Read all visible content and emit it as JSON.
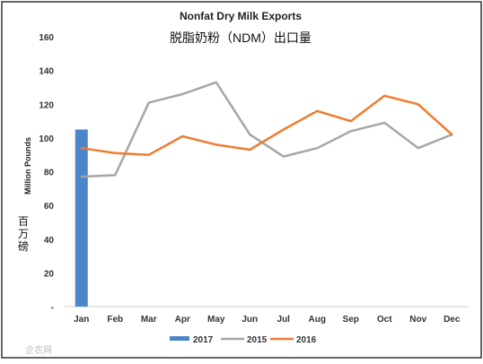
{
  "chart_data": {
    "type": "line",
    "title": "Nonfat Dry Milk Exports",
    "subtitle": "脱脂奶粉（NDM）出口量",
    "ylabel": "Million Pounds",
    "ylabel_cn": "百万磅",
    "xlabel": "",
    "ylim": [
      0,
      160
    ],
    "yticks": [
      "160",
      "140",
      "120",
      "100",
      "80",
      "60",
      "40",
      "20",
      "-"
    ],
    "categories": [
      "Jan",
      "Feb",
      "Mar",
      "Apr",
      "May",
      "Jun",
      "Jul",
      "Aug",
      "Sep",
      "Oct",
      "Nov",
      "Dec"
    ],
    "grid": false,
    "legend_position": "bottom",
    "series": [
      {
        "name": "2017",
        "kind": "bar",
        "color": "#4a86c8",
        "values": [
          105,
          null,
          null,
          null,
          null,
          null,
          null,
          null,
          null,
          null,
          null,
          null
        ]
      },
      {
        "name": "2015",
        "kind": "line",
        "color": "#a6a6a6",
        "values": [
          77,
          78,
          121,
          126,
          133,
          102,
          89,
          94,
          104,
          109,
          94,
          102
        ]
      },
      {
        "name": "2016",
        "kind": "line",
        "color": "#ed7d31",
        "values": [
          94,
          91,
          90,
          101,
          96,
          93,
          105,
          116,
          110,
          125,
          120,
          102
        ]
      }
    ]
  },
  "watermark": "企农网"
}
